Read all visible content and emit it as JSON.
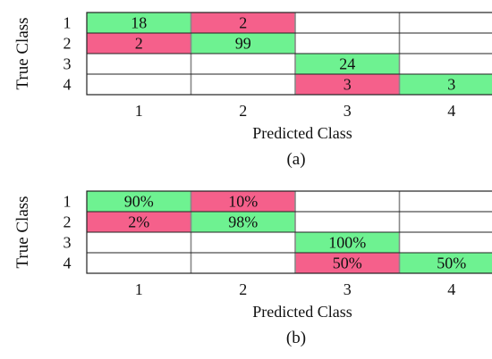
{
  "chart_data": [
    {
      "type": "heatmap",
      "panel_label": "(a)",
      "xlabel": "Predicted Class",
      "ylabel": "True Class",
      "row_labels": [
        "1",
        "2",
        "3",
        "4"
      ],
      "col_labels": [
        "1",
        "2",
        "3",
        "4"
      ],
      "values": [
        [
          18,
          2,
          null,
          null
        ],
        [
          2,
          99,
          null,
          null
        ],
        [
          null,
          null,
          24,
          null
        ],
        [
          null,
          null,
          3,
          3
        ]
      ],
      "cell_labels": [
        [
          "18",
          "2",
          "",
          ""
        ],
        [
          "2",
          "99",
          "",
          ""
        ],
        [
          "",
          "",
          "24",
          ""
        ],
        [
          "",
          "",
          "3",
          "3"
        ]
      ]
    },
    {
      "type": "heatmap",
      "panel_label": "(b)",
      "xlabel": "Predicted Class",
      "ylabel": "True Class",
      "row_labels": [
        "1",
        "2",
        "3",
        "4"
      ],
      "col_labels": [
        "1",
        "2",
        "3",
        "4"
      ],
      "values": [
        [
          90,
          10,
          null,
          null
        ],
        [
          2,
          98,
          null,
          null
        ],
        [
          null,
          null,
          100,
          null
        ],
        [
          null,
          null,
          50,
          50
        ]
      ],
      "cell_labels": [
        [
          "90%",
          "10%",
          "",
          ""
        ],
        [
          "2%",
          "98%",
          "",
          ""
        ],
        [
          "",
          "",
          "100%",
          ""
        ],
        [
          "",
          "",
          "50%",
          "50%"
        ]
      ]
    }
  ],
  "colors": {
    "correct": "#6ef291",
    "incorrect": "#f5608b",
    "empty": "#ffffff",
    "grid": "#888888",
    "border": "#222222"
  }
}
